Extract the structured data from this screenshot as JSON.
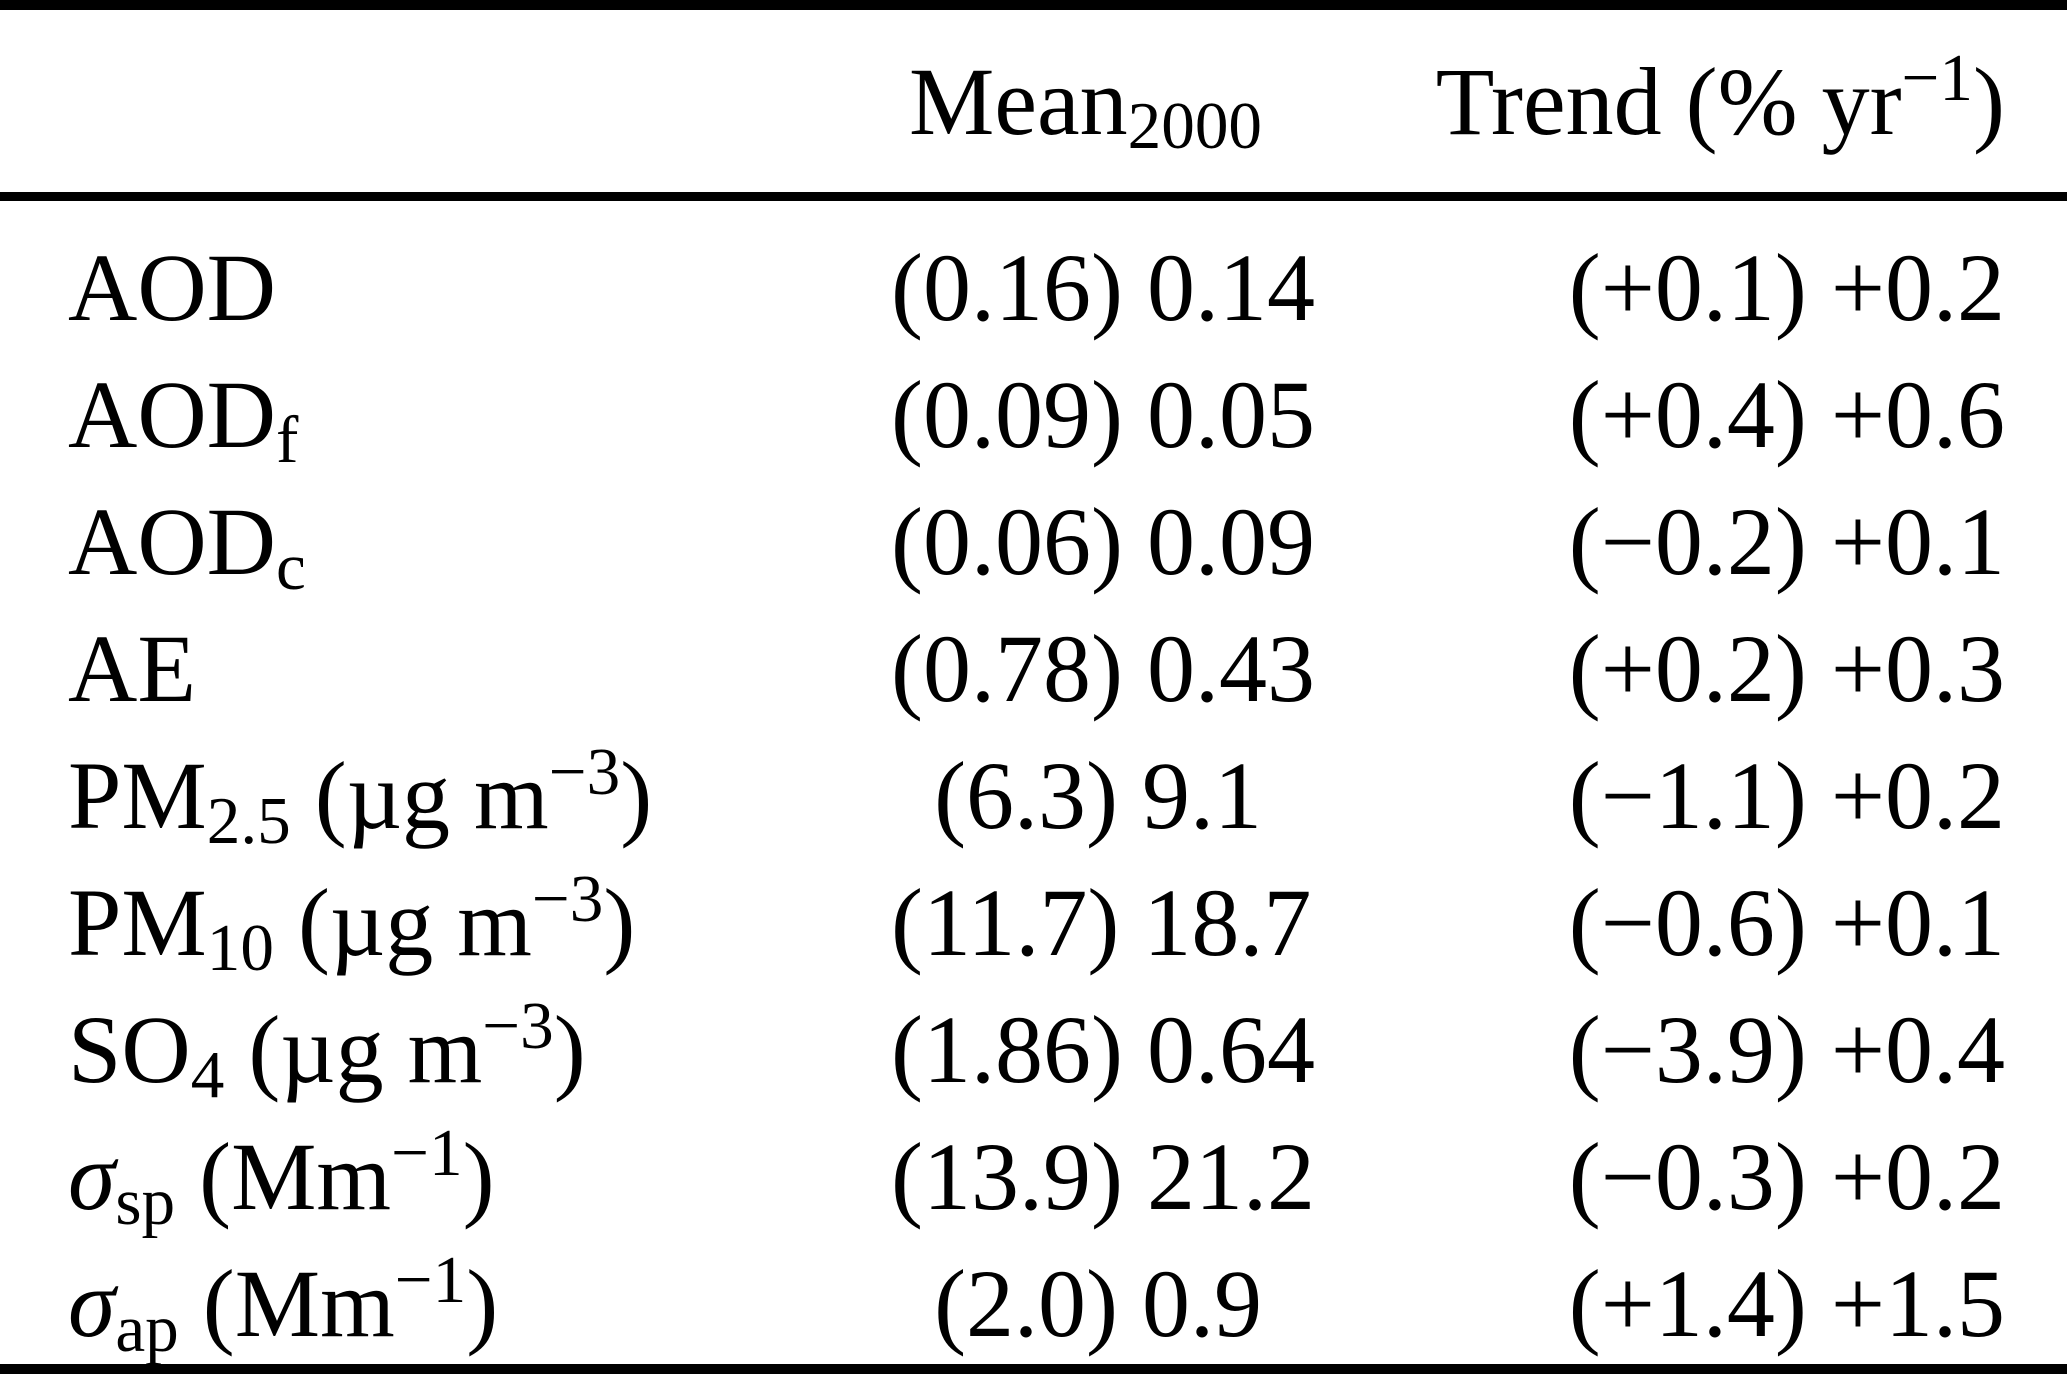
{
  "table": {
    "columns": [
      {
        "key": "label",
        "header": []
      },
      {
        "key": "mean",
        "header": [
          {
            "t": "Mean"
          },
          {
            "sub": "2000"
          }
        ]
      },
      {
        "key": "trend",
        "header": [
          {
            "t": "Trend (% yr"
          },
          {
            "sup": "−1"
          },
          {
            "t": ")"
          }
        ]
      }
    ],
    "rows": [
      {
        "label": [
          {
            "t": "AOD"
          }
        ],
        "mean": "(0.16) 0.14",
        "trend": "(+0.1) +0.2"
      },
      {
        "label": [
          {
            "t": "AOD"
          },
          {
            "sub": "f"
          }
        ],
        "mean": "(0.09) 0.05",
        "trend": "(+0.4) +0.6"
      },
      {
        "label": [
          {
            "t": "AOD"
          },
          {
            "sub": "c"
          }
        ],
        "mean": "(0.06) 0.09",
        "trend": "(−0.2) +0.1"
      },
      {
        "label": [
          {
            "t": "AE"
          }
        ],
        "mean": "(0.78) 0.43",
        "trend": "(+0.2) +0.3"
      },
      {
        "label": [
          {
            "t": "PM"
          },
          {
            "sub": "2.5"
          },
          {
            "t": " (µg m"
          },
          {
            "sup": "−3"
          },
          {
            "t": ")"
          }
        ],
        "mean": "(6.3) 9.1",
        "trend": "(−1.1) +0.2"
      },
      {
        "label": [
          {
            "t": "PM"
          },
          {
            "sub": "10"
          },
          {
            "t": " (µg m"
          },
          {
            "sup": "−3"
          },
          {
            "t": ")"
          }
        ],
        "mean": "(11.7) 18.7",
        "trend": "(−0.6) +0.1"
      },
      {
        "label": [
          {
            "t": "SO"
          },
          {
            "sub": "4"
          },
          {
            "t": " (µg m"
          },
          {
            "sup": "−3"
          },
          {
            "t": ")"
          }
        ],
        "mean": "(1.86) 0.64",
        "trend": "(−3.9) +0.4"
      },
      {
        "label": [
          {
            "i": "σ"
          },
          {
            "sub": "sp"
          },
          {
            "t": " (Mm"
          },
          {
            "sup": "−1"
          },
          {
            "t": ")"
          }
        ],
        "mean": "(13.9) 21.2",
        "trend": "(−0.3) +0.2"
      },
      {
        "label": [
          {
            "i": "σ"
          },
          {
            "sub": "ap"
          },
          {
            "t": " (Mm"
          },
          {
            "sup": "−1"
          },
          {
            "t": ")"
          }
        ],
        "mean": "(2.0) 0.9",
        "trend": "(+1.4) +1.5"
      }
    ]
  },
  "colors": {
    "background": "#ffffff",
    "text": "#000000",
    "rule": "#000000"
  }
}
